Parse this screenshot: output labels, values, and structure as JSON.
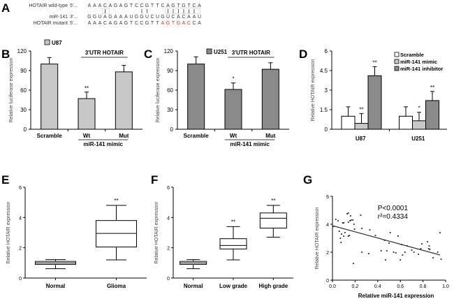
{
  "panels": {
    "A": {
      "letter": "A"
    },
    "B": {
      "letter": "B"
    },
    "C": {
      "letter": "C"
    },
    "D": {
      "letter": "D"
    },
    "E": {
      "letter": "E"
    },
    "F": {
      "letter": "F"
    },
    "G": {
      "letter": "G"
    }
  },
  "sequence": {
    "rows": [
      {
        "label": "HOTAIR wild-type",
        "prefix": "5'...",
        "seq": "AAACAGAGTCCGTTCAGTGTCA",
        "highlight": []
      },
      {
        "label": "miR-141",
        "prefix": "3'...",
        "seq": "GGUAGAAAUGGUCUGUCACAAU",
        "highlight": []
      },
      {
        "label": "HOTAIR mutant",
        "prefix": "5'...",
        "seq": "AAACAGAGTCCGTTAGTGACCA",
        "highlight": [
          14,
          15,
          16,
          17,
          18,
          19
        ]
      }
    ],
    "pair_marks": [
      3,
      10,
      11,
      15,
      16,
      17,
      18,
      19,
      20
    ],
    "highlight_color": "#e02020"
  },
  "chart_data": [
    {
      "id": "B",
      "type": "bar",
      "title": "",
      "legend": [
        "U87"
      ],
      "legend_placement": "top-left",
      "annotation": "3'UTR HOTAIR",
      "group_label": "miR-141 mimic",
      "categories": [
        "Scramble",
        "Wt",
        "Mut"
      ],
      "values": [
        100,
        47,
        88
      ],
      "errors": [
        10,
        10,
        10
      ],
      "significance": [
        "",
        "**",
        ""
      ],
      "xlabel": "",
      "ylabel": "Relative luciferase expression",
      "ylim": [
        0,
        120
      ],
      "yticks": [
        0,
        30,
        60,
        90,
        120
      ],
      "bar_color": "#c8c8c8"
    },
    {
      "id": "C",
      "type": "bar",
      "title": "",
      "legend": [
        "U251"
      ],
      "legend_placement": "top-left",
      "annotation": "3'UTR HOTAIR",
      "group_label": "miR-141 mimic",
      "categories": [
        "Scramble",
        "Wt",
        "Mut"
      ],
      "values": [
        100,
        61,
        92
      ],
      "errors": [
        11,
        10,
        10
      ],
      "significance": [
        "",
        "*",
        ""
      ],
      "xlabel": "",
      "ylabel": "Relative luciferase expression",
      "ylim": [
        0,
        120
      ],
      "yticks": [
        0,
        30,
        60,
        90,
        120
      ],
      "bar_color": "#8a8a8a"
    },
    {
      "id": "D",
      "type": "bar",
      "title": "",
      "legend_placement": "top-right",
      "categories": [
        "U87",
        "U251"
      ],
      "series": [
        {
          "name": "Scramble",
          "values": [
            1.0,
            1.0
          ],
          "errors": [
            0.72,
            0.72
          ],
          "significance": [
            "",
            ""
          ],
          "color": "#ffffff"
        },
        {
          "name": "miR-141 mimic",
          "values": [
            0.45,
            0.65
          ],
          "errors": [
            0.75,
            0.65
          ],
          "significance": [
            "**",
            "*"
          ],
          "color": "#c8c8c8"
        },
        {
          "name": "miR-141 inhibitor",
          "values": [
            4.1,
            2.2
          ],
          "errors": [
            0.7,
            0.7
          ],
          "significance": [
            "**",
            "**"
          ],
          "color": "#8a8a8a"
        }
      ],
      "xlabel": "",
      "ylabel": "Relative HOTAIR expression",
      "ylim": [
        0,
        6
      ],
      "yticks": [
        0,
        1.5,
        3,
        4.5,
        6
      ],
      "ytick_labels": [
        "0",
        "1.5",
        "3",
        "4.5",
        "6"
      ]
    },
    {
      "id": "E",
      "type": "box",
      "categories": [
        "Normal",
        "Glioma"
      ],
      "boxes": [
        {
          "min": 0.62,
          "q1": 0.9,
          "median": 1.0,
          "q3": 1.1,
          "max": 1.22,
          "significance": ""
        },
        {
          "min": 1.2,
          "q1": 2.05,
          "median": 2.95,
          "q3": 3.8,
          "max": 4.8,
          "significance": "**"
        }
      ],
      "xlabel": "",
      "ylabel": "Relative HOTAIR expression",
      "ylim": [
        0,
        6
      ],
      "yticks": [
        0,
        2,
        4,
        6
      ]
    },
    {
      "id": "F",
      "type": "box",
      "categories": [
        "Normal",
        "Low grade",
        "High grade"
      ],
      "boxes": [
        {
          "min": 0.62,
          "q1": 0.9,
          "median": 1.0,
          "q3": 1.1,
          "max": 1.22,
          "significance": ""
        },
        {
          "min": 1.2,
          "q1": 1.92,
          "median": 2.15,
          "q3": 2.6,
          "max": 3.4,
          "significance": "**"
        },
        {
          "min": 2.7,
          "q1": 3.3,
          "median": 3.95,
          "q3": 4.3,
          "max": 4.8,
          "significance": "**"
        }
      ],
      "xlabel": "",
      "ylabel": "Relative HOTAIR expression",
      "ylim": [
        0,
        6
      ],
      "yticks": [
        0,
        2,
        4,
        6
      ]
    },
    {
      "id": "G",
      "type": "scatter",
      "xlabel": "Relative miR-141 expression",
      "ylabel": "Relative HOTAIR expression",
      "xlim": [
        0,
        1.0
      ],
      "ylim": [
        0,
        6
      ],
      "xticks": [
        0.0,
        0.2,
        0.4,
        0.6,
        0.8,
        1.0
      ],
      "xtick_labels": [
        "0.0",
        "0.2",
        "0.4",
        "0.6",
        "0.8",
        "1.0"
      ],
      "yticks": [
        0,
        2,
        4,
        6
      ],
      "annotation": [
        "P<0.0001",
        "r²=0.4334"
      ],
      "fit_line": {
        "x0": 0.0,
        "y0": 3.9,
        "x1": 0.95,
        "y1": 1.8
      },
      "points": [
        [
          0.01,
          3.85
        ],
        [
          0.03,
          4.35
        ],
        [
          0.05,
          4.25
        ],
        [
          0.06,
          3.5
        ],
        [
          0.07,
          3.0
        ],
        [
          0.075,
          2.7
        ],
        [
          0.08,
          3.3
        ],
        [
          0.09,
          4.1
        ],
        [
          0.1,
          4.1
        ],
        [
          0.1,
          3.15
        ],
        [
          0.11,
          3.4
        ],
        [
          0.13,
          4.75
        ],
        [
          0.14,
          4.8
        ],
        [
          0.14,
          4.15
        ],
        [
          0.14,
          3.15
        ],
        [
          0.15,
          3.2
        ],
        [
          0.155,
          4.25
        ],
        [
          0.16,
          4.6
        ],
        [
          0.165,
          4.3
        ],
        [
          0.18,
          4.3
        ],
        [
          0.185,
          1.2
        ],
        [
          0.19,
          4.0
        ],
        [
          0.195,
          3.65
        ],
        [
          0.25,
          4.65
        ],
        [
          0.26,
          3.7
        ],
        [
          0.26,
          2.0
        ],
        [
          0.32,
          1.9
        ],
        [
          0.33,
          3.6
        ],
        [
          0.38,
          3.2
        ],
        [
          0.43,
          2.1
        ],
        [
          0.46,
          2.85
        ],
        [
          0.47,
          1.45
        ],
        [
          0.48,
          2.1
        ],
        [
          0.5,
          2.65
        ],
        [
          0.51,
          3.4
        ],
        [
          0.54,
          2.0
        ],
        [
          0.56,
          1.95
        ],
        [
          0.58,
          3.15
        ],
        [
          0.6,
          1.45
        ],
        [
          0.61,
          2.55
        ],
        [
          0.62,
          1.8
        ],
        [
          0.64,
          2.0
        ],
        [
          0.66,
          2.45
        ],
        [
          0.7,
          2.15
        ],
        [
          0.72,
          2.0
        ],
        [
          0.76,
          1.85
        ],
        [
          0.78,
          2.25
        ],
        [
          0.79,
          2.6
        ],
        [
          0.84,
          2.75
        ],
        [
          0.85,
          2.25
        ],
        [
          0.855,
          2.45
        ],
        [
          0.86,
          2.2
        ],
        [
          0.89,
          1.6
        ],
        [
          0.93,
          2.0
        ],
        [
          0.95,
          3.4
        ],
        [
          0.96,
          1.5
        ]
      ]
    }
  ]
}
